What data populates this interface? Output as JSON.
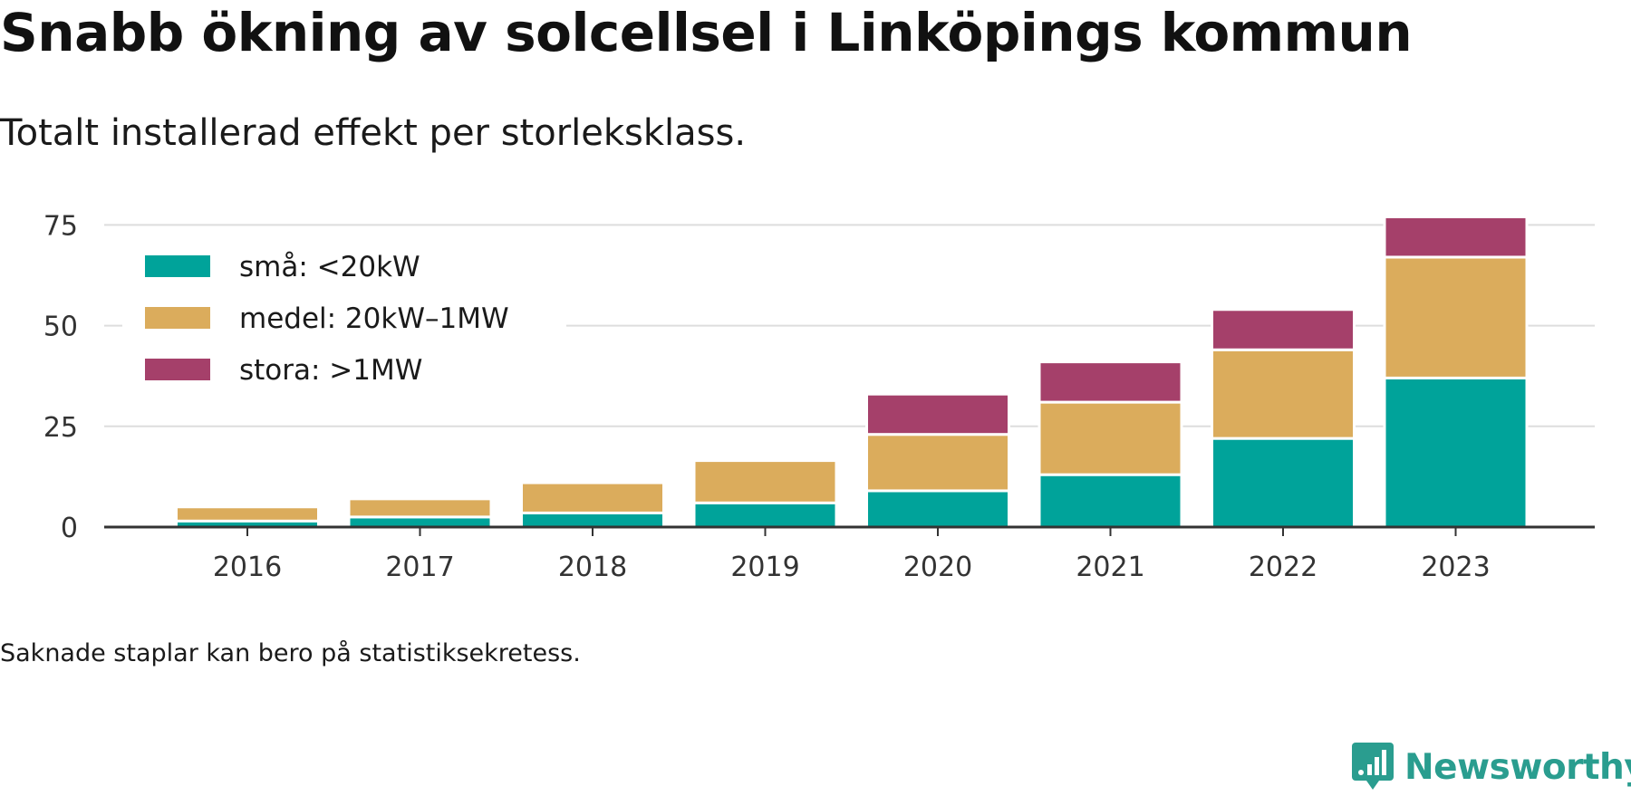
{
  "header": {
    "title": "Snabb ökning av solcellsel i Linköpings kommun",
    "subtitle": "Totalt installerad effekt per storleksklass."
  },
  "footnote": "Saknade staplar kan bero på statistiksekretess.",
  "brand": {
    "name": "Newsworthy",
    "icon": "newsworthy-logo-icon",
    "color": "#2a9d8f"
  },
  "chart_data": {
    "type": "bar",
    "stacked": true,
    "categories": [
      "2016",
      "2017",
      "2018",
      "2019",
      "2020",
      "2021",
      "2022",
      "2023"
    ],
    "series": [
      {
        "name": "små: <20kW",
        "color": "#00a39a",
        "values": [
          1.5,
          2.5,
          3.5,
          6,
          9,
          13,
          22,
          37
        ]
      },
      {
        "name": "medel: 20kW–1MW",
        "color": "#dbac5c",
        "values": [
          3.5,
          4.5,
          7.5,
          10.5,
          14,
          18,
          22,
          30
        ]
      },
      {
        "name": "stora: >1MW",
        "color": "#a5406a",
        "values": [
          0,
          0,
          0,
          0,
          10,
          10,
          10,
          10
        ]
      }
    ],
    "yticks": [
      0,
      25,
      50,
      75
    ],
    "ylim": [
      0,
      78
    ],
    "grid": true,
    "legend": "top-left",
    "xlabel": "",
    "ylabel": ""
  }
}
